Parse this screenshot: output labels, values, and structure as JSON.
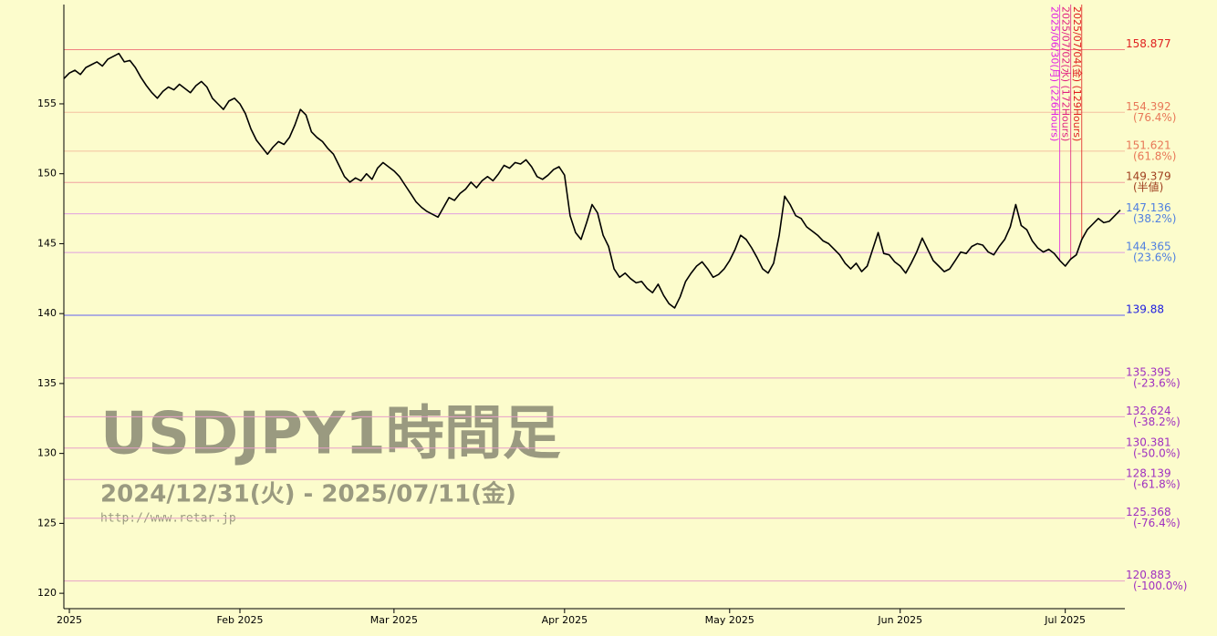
{
  "chart_data": {
    "type": "line",
    "color": "#000000",
    "categories": [
      null,
      "2025",
      null,
      null,
      null,
      null,
      null,
      null,
      null,
      null,
      null,
      null,
      null,
      null,
      null,
      null,
      null,
      null,
      null,
      null,
      null,
      null,
      null,
      null,
      null,
      null,
      null,
      null,
      null,
      null,
      null,
      null,
      "Feb 2025",
      null,
      null,
      null,
      null,
      null,
      null,
      null,
      null,
      null,
      null,
      null,
      null,
      null,
      null,
      null,
      null,
      null,
      null,
      null,
      null,
      null,
      null,
      null,
      null,
      null,
      null,
      null,
      "Mar 2025",
      null,
      null,
      null,
      null,
      null,
      null,
      null,
      null,
      null,
      null,
      null,
      null,
      null,
      null,
      null,
      null,
      null,
      null,
      null,
      null,
      null,
      null,
      null,
      null,
      null,
      null,
      null,
      null,
      null,
      null,
      "Apr 2025",
      null,
      null,
      null,
      null,
      null,
      null,
      null,
      null,
      null,
      null,
      null,
      null,
      null,
      null,
      null,
      null,
      null,
      null,
      null,
      null,
      null,
      null,
      null,
      null,
      null,
      null,
      null,
      null,
      null,
      "May 2025",
      null,
      null,
      null,
      null,
      null,
      null,
      null,
      null,
      null,
      null,
      null,
      null,
      null,
      null,
      null,
      null,
      null,
      null,
      null,
      null,
      null,
      null,
      null,
      null,
      null,
      null,
      null,
      null,
      null,
      null,
      "Jun 2025",
      null,
      null,
      null,
      null,
      null,
      null,
      null,
      null,
      null,
      null,
      null,
      null,
      null,
      null,
      null,
      null,
      null,
      null,
      null,
      null,
      null,
      null,
      null,
      null,
      null,
      null,
      null,
      null,
      null,
      "Jul 2025",
      null,
      null,
      null,
      null,
      null,
      null,
      null,
      null,
      null,
      null
    ],
    "values": [
      156.8,
      157.2,
      157.4,
      157.1,
      157.6,
      157.8,
      158.0,
      157.7,
      158.2,
      158.4,
      158.6,
      158.0,
      158.1,
      157.6,
      156.9,
      156.3,
      155.8,
      155.4,
      155.9,
      156.2,
      156.0,
      156.4,
      156.1,
      155.8,
      156.3,
      156.6,
      156.2,
      155.4,
      155.0,
      154.6,
      155.2,
      155.4,
      155.0,
      154.3,
      153.2,
      152.4,
      151.9,
      151.4,
      151.9,
      152.3,
      152.1,
      152.6,
      153.5,
      154.6,
      154.2,
      153.0,
      152.6,
      152.3,
      151.8,
      151.4,
      150.6,
      149.8,
      149.4,
      149.7,
      149.5,
      150.0,
      149.6,
      150.4,
      150.8,
      150.5,
      150.2,
      149.8,
      149.2,
      148.6,
      148.0,
      147.6,
      147.3,
      147.1,
      146.9,
      147.6,
      148.3,
      148.1,
      148.6,
      148.9,
      149.4,
      149.0,
      149.5,
      149.8,
      149.5,
      150.0,
      150.6,
      150.4,
      150.8,
      150.7,
      151.0,
      150.5,
      149.8,
      149.6,
      149.9,
      150.3,
      150.5,
      149.9,
      147.0,
      145.8,
      145.3,
      146.5,
      147.8,
      147.2,
      145.6,
      144.8,
      143.2,
      142.6,
      142.9,
      142.5,
      142.2,
      142.3,
      141.8,
      141.5,
      142.1,
      141.3,
      140.7,
      140.4,
      141.2,
      142.3,
      142.9,
      143.4,
      143.7,
      143.2,
      142.6,
      142.8,
      143.2,
      143.8,
      144.6,
      145.6,
      145.3,
      144.7,
      144.0,
      143.2,
      142.9,
      143.6,
      145.6,
      148.4,
      147.8,
      147.0,
      146.8,
      146.2,
      145.9,
      145.6,
      145.2,
      145.0,
      144.6,
      144.2,
      143.6,
      143.2,
      143.6,
      143.0,
      143.4,
      144.6,
      145.8,
      144.3,
      144.2,
      143.7,
      143.4,
      142.9,
      143.6,
      144.4,
      145.4,
      144.6,
      143.8,
      143.4,
      143.0,
      143.2,
      143.8,
      144.4,
      144.3,
      144.8,
      145.0,
      144.9,
      144.4,
      144.2,
      144.8,
      145.3,
      146.2,
      147.8,
      146.3,
      146.0,
      145.2,
      144.7,
      144.4,
      144.6,
      144.3,
      143.8,
      143.4,
      143.9,
      144.2,
      145.3,
      146.0,
      146.4,
      146.8,
      146.5,
      146.6,
      147.0,
      147.4
    ],
    "ylim": [
      118.9,
      162.1
    ],
    "yticks": [
      120,
      125,
      130,
      135,
      140,
      145,
      150,
      155
    ],
    "levels": [
      {
        "value": 158.877,
        "color": "#e02020",
        "line_color": "#f08080"
      },
      {
        "value": 154.392,
        "note": "(76.4%)",
        "color": "#e87858",
        "line_color": "#f4c0a0"
      },
      {
        "value": 151.621,
        "note": "(61.8%)",
        "color": "#e87858",
        "line_color": "#f4c0a0"
      },
      {
        "value": 149.379,
        "note": "(半値)",
        "color": "#a04020",
        "line_color": "#f0a0a0"
      },
      {
        "value": 147.136,
        "note": "(38.2%)",
        "color": "#5080e0",
        "line_color": "#e0a0e0"
      },
      {
        "value": 144.365,
        "note": "(23.6%)",
        "color": "#5080e0",
        "line_color": "#e0a0e0"
      },
      {
        "value": 139.88,
        "color": "#2020e0",
        "line_color": "#6060f0"
      },
      {
        "value": 135.395,
        "note": "(-23.6%)",
        "color": "#a030c0",
        "line_color": "#e8a0c8"
      },
      {
        "value": 132.624,
        "note": "(-38.2%)",
        "color": "#a030c0",
        "line_color": "#e8a0c8"
      },
      {
        "value": 130.381,
        "note": "(-50.0%)",
        "color": "#a030c0",
        "line_color": "#e8a0c8"
      },
      {
        "value": 128.139,
        "note": "(-61.8%)",
        "color": "#a030c0",
        "line_color": "#e8a0c8"
      },
      {
        "value": 125.368,
        "note": "(-76.4%)",
        "color": "#a030c0",
        "line_color": "#e8a0c8"
      },
      {
        "value": 120.883,
        "note": "(-100.0%)",
        "color": "#a030c0",
        "line_color": "#e8a0c8"
      }
    ],
    "annotations": [
      {
        "text": "2025/06/30(月) (226Hours)",
        "color": "#e020e0"
      },
      {
        "text": "2025/07/02(水) (172Hours)",
        "color": "#e02080"
      },
      {
        "text": "2025/07/04(金) (129Hours)",
        "color": "#e02020"
      }
    ],
    "watermark": {
      "title": "USDJPY1時間足",
      "period": "2024/12/31(火) - 2025/07/11(金)",
      "url": "http://www.retar.jp"
    }
  }
}
